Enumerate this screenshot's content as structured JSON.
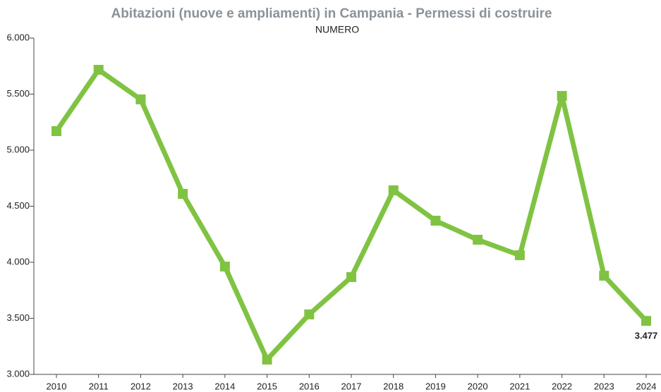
{
  "chart_data": {
    "type": "line",
    "title": "Abitazioni (nuove e ampliamenti) in Campania - Permessi di costruire",
    "subtitle": "NUMERO",
    "categories": [
      "2010",
      "2011",
      "2012",
      "2013",
      "2014",
      "2015",
      "2016",
      "2017",
      "2018",
      "2019",
      "2020",
      "2021",
      "2022",
      "2023",
      "2024"
    ],
    "series": [
      {
        "name": "Permessi di costruire",
        "color": "#80c342",
        "values": [
          5170,
          5717,
          5453,
          4610,
          3962,
          3132,
          3535,
          3868,
          4642,
          4371,
          4201,
          4063,
          5484,
          3880,
          3477
        ],
        "value_labels": [
          null,
          null,
          null,
          null,
          null,
          null,
          null,
          null,
          null,
          null,
          null,
          null,
          null,
          null,
          "3.477"
        ]
      }
    ],
    "ylim": [
      3000,
      6000
    ],
    "yticks": [
      {
        "value": 3000,
        "label": "3.000"
      },
      {
        "value": 3500,
        "label": "3.500"
      },
      {
        "value": 4000,
        "label": "4.000"
      },
      {
        "value": 4500,
        "label": "4.500"
      },
      {
        "value": 5000,
        "label": "5.000"
      },
      {
        "value": 5500,
        "label": "5.500"
      },
      {
        "value": 6000,
        "label": "6.000"
      }
    ],
    "grid": false
  }
}
